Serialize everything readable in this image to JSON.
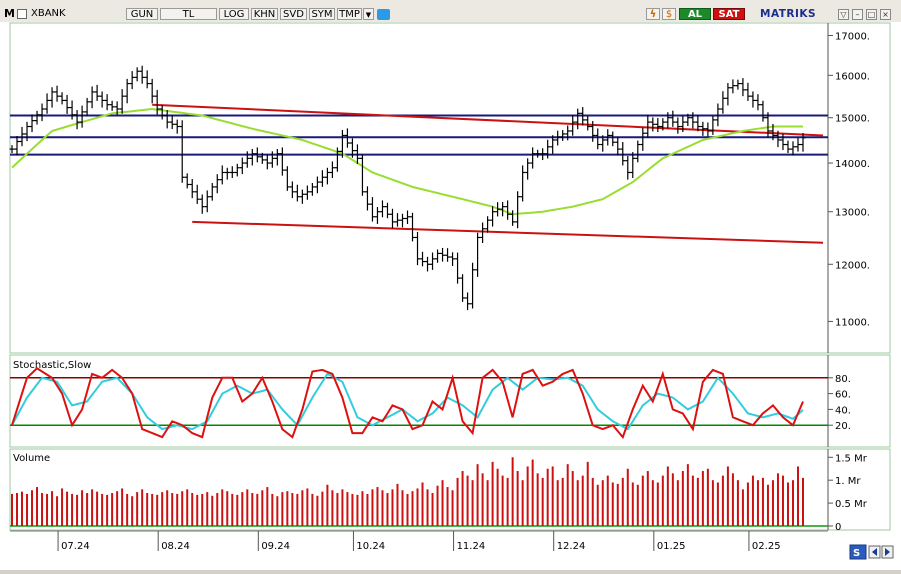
{
  "toolbar": {
    "mode_letter": "M",
    "symbol": "XBANK",
    "buttons": [
      "GUN",
      "TL",
      "LOG",
      "KHN",
      "SVD",
      "SYM",
      "TMP"
    ],
    "buy_label": "AL",
    "sell_label": "SAT",
    "brand": "MATRIKS"
  },
  "colors": {
    "price_bars": "#000000",
    "sma_line": "#99dd33",
    "trend_red": "#cc1111",
    "horizontal_levels": "#1a1a7a",
    "stoch_k": "#dd1111",
    "stoch_d": "#33ccdd",
    "stoch_upper": "#8b0000",
    "stoch_lower": "#008800",
    "volume": "#cc1111"
  },
  "chart_data": [
    {
      "type": "ohlc",
      "y_ticks": [
        "17000.",
        "16000.",
        "15000.",
        "14000.",
        "13000.",
        "12000.",
        "11000."
      ],
      "ylim": [
        10500,
        17300
      ],
      "y_scale": "log",
      "x_ticks": [
        "07.24",
        "08.24",
        "09.24",
        "10.24",
        "11.24",
        "12.24",
        "01.25",
        "02.25"
      ],
      "horizontal_levels": [
        15050,
        14560,
        14180
      ],
      "close_anchors": [
        [
          0,
          14300
        ],
        [
          3,
          14800
        ],
        [
          6,
          15200
        ],
        [
          8,
          15600
        ],
        [
          10,
          15400
        ],
        [
          13,
          14900
        ],
        [
          16,
          15600
        ],
        [
          19,
          15300
        ],
        [
          21,
          15200
        ],
        [
          23,
          15800
        ],
        [
          25,
          16100
        ],
        [
          27,
          15800
        ],
        [
          29,
          15200
        ],
        [
          31,
          14900
        ],
        [
          33,
          14800
        ],
        [
          34,
          13700
        ],
        [
          36,
          13400
        ],
        [
          38,
          13100
        ],
        [
          40,
          13500
        ],
        [
          42,
          13800
        ],
        [
          44,
          13800
        ],
        [
          46,
          14000
        ],
        [
          48,
          14200
        ],
        [
          51,
          14000
        ],
        [
          53,
          14200
        ],
        [
          55,
          13500
        ],
        [
          57,
          13300
        ],
        [
          59,
          13400
        ],
        [
          61,
          13600
        ],
        [
          64,
          13900
        ],
        [
          66,
          14600
        ],
        [
          69,
          14100
        ],
        [
          70,
          13400
        ],
        [
          72,
          12900
        ],
        [
          74,
          13100
        ],
        [
          76,
          12800
        ],
        [
          79,
          12900
        ],
        [
          81,
          12100
        ],
        [
          83,
          12000
        ],
        [
          85,
          12200
        ],
        [
          88,
          12100
        ],
        [
          90,
          11400
        ],
        [
          91,
          11300
        ],
        [
          93,
          12500
        ],
        [
          96,
          13000
        ],
        [
          98,
          13100
        ],
        [
          100,
          12800
        ],
        [
          102,
          13800
        ],
        [
          104,
          14200
        ],
        [
          106,
          14200
        ],
        [
          108,
          14500
        ],
        [
          111,
          14700
        ],
        [
          113,
          15100
        ],
        [
          115,
          14800
        ],
        [
          117,
          14400
        ],
        [
          119,
          14600
        ],
        [
          121,
          14300
        ],
        [
          123,
          13800
        ],
        [
          125,
          14400
        ],
        [
          127,
          14900
        ],
        [
          129,
          14800
        ],
        [
          131,
          15000
        ],
        [
          133,
          14800
        ],
        [
          135,
          15000
        ],
        [
          137,
          14800
        ],
        [
          139,
          14700
        ],
        [
          141,
          15200
        ],
        [
          143,
          15700
        ],
        [
          145,
          15800
        ],
        [
          147,
          15500
        ],
        [
          149,
          15300
        ],
        [
          151,
          14700
        ],
        [
          153,
          14500
        ],
        [
          155,
          14300
        ],
        [
          157,
          14400
        ],
        [
          159,
          14700
        ]
      ],
      "sma_anchors": [
        [
          0,
          13900
        ],
        [
          8,
          14700
        ],
        [
          20,
          15100
        ],
        [
          28,
          15200
        ],
        [
          38,
          15050
        ],
        [
          48,
          14750
        ],
        [
          58,
          14500
        ],
        [
          66,
          14200
        ],
        [
          72,
          13800
        ],
        [
          80,
          13500
        ],
        [
          88,
          13300
        ],
        [
          96,
          13100
        ],
        [
          100,
          12950
        ],
        [
          106,
          13000
        ],
        [
          112,
          13100
        ],
        [
          118,
          13250
        ],
        [
          124,
          13600
        ],
        [
          130,
          14100
        ],
        [
          138,
          14500
        ],
        [
          146,
          14700
        ],
        [
          152,
          14800
        ],
        [
          159,
          14800
        ]
      ],
      "trend_lines": [
        {
          "from": [
            28,
            15300
          ],
          "to": [
            162,
            14600
          ]
        },
        {
          "from": [
            36,
            12800
          ],
          "to": [
            162,
            12400
          ]
        }
      ]
    },
    {
      "type": "line",
      "title": "Stochastic,Slow",
      "y_ticks": [
        "80.",
        "60.",
        "40.",
        "20."
      ],
      "ylim": [
        0,
        100
      ],
      "levels": [
        80,
        20
      ],
      "series": [
        {
          "key": "k",
          "anchors": [
            [
              0,
              20
            ],
            [
              3,
              80
            ],
            [
              5,
              92
            ],
            [
              8,
              80
            ],
            [
              10,
              60
            ],
            [
              12,
              20
            ],
            [
              14,
              40
            ],
            [
              16,
              85
            ],
            [
              18,
              80
            ],
            [
              20,
              90
            ],
            [
              22,
              80
            ],
            [
              24,
              60
            ],
            [
              26,
              15
            ],
            [
              28,
              10
            ],
            [
              30,
              5
            ],
            [
              32,
              25
            ],
            [
              34,
              20
            ],
            [
              36,
              10
            ],
            [
              38,
              5
            ],
            [
              40,
              55
            ],
            [
              42,
              80
            ],
            [
              44,
              80
            ],
            [
              46,
              50
            ],
            [
              48,
              60
            ],
            [
              50,
              80
            ],
            [
              52,
              50
            ],
            [
              54,
              15
            ],
            [
              56,
              5
            ],
            [
              58,
              40
            ],
            [
              60,
              88
            ],
            [
              62,
              90
            ],
            [
              64,
              85
            ],
            [
              66,
              55
            ],
            [
              68,
              10
            ],
            [
              70,
              10
            ],
            [
              72,
              30
            ],
            [
              74,
              25
            ],
            [
              76,
              45
            ],
            [
              78,
              40
            ],
            [
              80,
              15
            ],
            [
              82,
              20
            ],
            [
              84,
              50
            ],
            [
              86,
              40
            ],
            [
              88,
              80
            ],
            [
              90,
              25
            ],
            [
              92,
              10
            ],
            [
              94,
              80
            ],
            [
              96,
              90
            ],
            [
              98,
              75
            ],
            [
              100,
              30
            ],
            [
              102,
              85
            ],
            [
              104,
              90
            ],
            [
              106,
              70
            ],
            [
              108,
              75
            ],
            [
              110,
              85
            ],
            [
              112,
              90
            ],
            [
              114,
              60
            ],
            [
              116,
              20
            ],
            [
              118,
              15
            ],
            [
              120,
              20
            ],
            [
              122,
              5
            ],
            [
              124,
              40
            ],
            [
              126,
              70
            ],
            [
              128,
              50
            ],
            [
              130,
              85
            ],
            [
              132,
              40
            ],
            [
              134,
              35
            ],
            [
              136,
              15
            ],
            [
              138,
              75
            ],
            [
              140,
              90
            ],
            [
              142,
              85
            ],
            [
              144,
              30
            ],
            [
              146,
              25
            ],
            [
              148,
              20
            ],
            [
              150,
              35
            ],
            [
              152,
              45
            ],
            [
              154,
              30
            ],
            [
              156,
              20
            ],
            [
              159,
              65
            ]
          ]
        },
        {
          "key": "d",
          "anchors": [
            [
              0,
              20
            ],
            [
              3,
              55
            ],
            [
              6,
              80
            ],
            [
              9,
              75
            ],
            [
              12,
              45
            ],
            [
              15,
              50
            ],
            [
              18,
              75
            ],
            [
              21,
              80
            ],
            [
              24,
              60
            ],
            [
              27,
              30
            ],
            [
              30,
              15
            ],
            [
              33,
              20
            ],
            [
              36,
              15
            ],
            [
              39,
              25
            ],
            [
              42,
              60
            ],
            [
              45,
              70
            ],
            [
              48,
              60
            ],
            [
              51,
              65
            ],
            [
              54,
              40
            ],
            [
              57,
              20
            ],
            [
              60,
              55
            ],
            [
              63,
              85
            ],
            [
              66,
              75
            ],
            [
              69,
              30
            ],
            [
              72,
              20
            ],
            [
              75,
              30
            ],
            [
              78,
              40
            ],
            [
              81,
              25
            ],
            [
              84,
              35
            ],
            [
              87,
              55
            ],
            [
              90,
              45
            ],
            [
              93,
              30
            ],
            [
              96,
              65
            ],
            [
              99,
              80
            ],
            [
              102,
              65
            ],
            [
              105,
              80
            ],
            [
              108,
              78
            ],
            [
              111,
              80
            ],
            [
              114,
              70
            ],
            [
              117,
              40
            ],
            [
              120,
              25
            ],
            [
              123,
              15
            ],
            [
              126,
              45
            ],
            [
              129,
              60
            ],
            [
              132,
              55
            ],
            [
              135,
              40
            ],
            [
              138,
              50
            ],
            [
              141,
              80
            ],
            [
              144,
              60
            ],
            [
              147,
              35
            ],
            [
              150,
              30
            ],
            [
              153,
              35
            ],
            [
              156,
              28
            ],
            [
              159,
              45
            ]
          ]
        }
      ]
    },
    {
      "type": "bar",
      "title": "Volume",
      "y_ticks": [
        "1.5 Mr",
        "1. Mr",
        "0.5 Mr",
        "0"
      ],
      "ylim": [
        0,
        1.55
      ],
      "values": [
        0.7,
        0.72,
        0.75,
        0.7,
        0.78,
        0.85,
        0.72,
        0.7,
        0.76,
        0.65,
        0.82,
        0.75,
        0.7,
        0.68,
        0.78,
        0.72,
        0.8,
        0.75,
        0.7,
        0.68,
        0.72,
        0.76,
        0.82,
        0.7,
        0.65,
        0.74,
        0.8,
        0.72,
        0.7,
        0.68,
        0.74,
        0.78,
        0.72,
        0.7,
        0.76,
        0.8,
        0.72,
        0.68,
        0.7,
        0.74,
        0.66,
        0.72,
        0.8,
        0.76,
        0.7,
        0.68,
        0.74,
        0.8,
        0.72,
        0.7,
        0.78,
        0.85,
        0.7,
        0.65,
        0.74,
        0.76,
        0.72,
        0.7,
        0.78,
        0.82,
        0.7,
        0.66,
        0.75,
        0.9,
        0.78,
        0.72,
        0.8,
        0.74,
        0.7,
        0.68,
        0.76,
        0.7,
        0.8,
        0.85,
        0.78,
        0.72,
        0.8,
        0.92,
        0.78,
        0.7,
        0.76,
        0.82,
        0.95,
        0.8,
        0.72,
        0.88,
        1.0,
        0.85,
        0.78,
        1.05,
        1.2,
        1.1,
        1.0,
        1.35,
        1.15,
        1.0,
        1.4,
        1.25,
        1.1,
        1.05,
        1.5,
        1.2,
        1.0,
        1.3,
        1.45,
        1.15,
        1.05,
        1.25,
        1.3,
        1.0,
        1.05,
        1.35,
        1.2,
        1.0,
        1.1,
        1.4,
        1.05,
        0.9,
        1.0,
        1.1,
        0.95,
        0.92,
        1.05,
        1.25,
        0.95,
        0.9,
        1.1,
        1.2,
        1.0,
        0.95,
        1.1,
        1.3,
        1.15,
        1.0,
        1.2,
        1.35,
        1.1,
        1.05,
        1.2,
        1.25,
        1.0,
        0.95,
        1.1,
        1.3,
        1.15,
        1.0,
        0.8,
        0.95,
        1.1,
        1.0,
        1.05,
        0.9,
        1.0,
        1.15,
        1.1,
        0.95,
        1.0,
        1.3,
        1.05
      ]
    }
  ]
}
